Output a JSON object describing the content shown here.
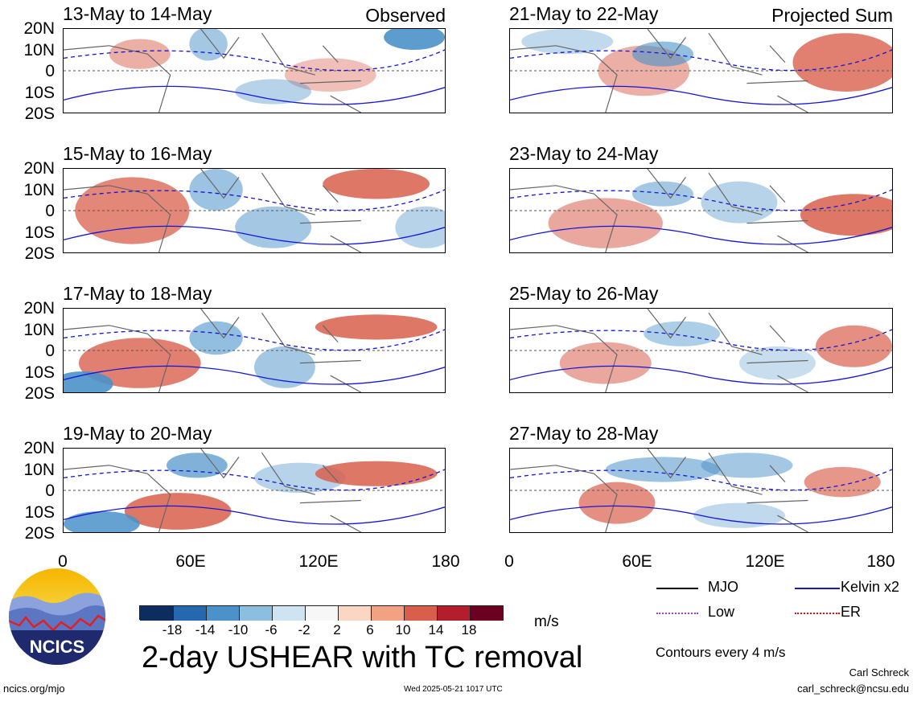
{
  "panels_left": [
    {
      "title": "13-May to 14-May",
      "corner": "Observed"
    },
    {
      "title": "15-May to 16-May",
      "corner": ""
    },
    {
      "title": "17-May to 18-May",
      "corner": ""
    },
    {
      "title": "19-May to 20-May",
      "corner": ""
    }
  ],
  "panels_right": [
    {
      "title": "21-May to 22-May",
      "corner": "Projected Sum"
    },
    {
      "title": "23-May to 24-May",
      "corner": ""
    },
    {
      "title": "25-May to 26-May",
      "corner": ""
    },
    {
      "title": "27-May to 28-May",
      "corner": ""
    }
  ],
  "lat_labels": [
    "20N",
    "10N",
    "0",
    "10S",
    "20S"
  ],
  "lon_labels": [
    "0",
    "60E",
    "120E",
    "180"
  ],
  "colorbar": {
    "colors": [
      "#0c2d5e",
      "#2468b0",
      "#4a92c9",
      "#8cbfdf",
      "#cfe4f1",
      "#f7f7f7",
      "#fbd6c2",
      "#f2a283",
      "#d95f4c",
      "#b41d2c",
      "#6c0020"
    ],
    "ticks": [
      "-18",
      "-14",
      "-10",
      "-6",
      "-2",
      "2",
      "6",
      "10",
      "14",
      "18"
    ],
    "units": "m/s"
  },
  "legend": {
    "items": [
      {
        "label": "MJO",
        "color": "#000000"
      },
      {
        "label": "Kelvin x2",
        "color": "#1515d8"
      },
      {
        "label": "Low",
        "color": "#a040e0"
      },
      {
        "label": "ER",
        "color": "#e01010"
      }
    ],
    "contour_note": "Contours every 4 m/s"
  },
  "main_title": "2-day USHEAR with TC removal",
  "logo_text": "NCICS",
  "footer": {
    "left": "ncics.org/mjo",
    "center": "Wed 2025-05-21 1017 UTC",
    "author": "Carl Schreck",
    "email": "carl_schreck@ncsu.edu"
  },
  "colors": {
    "shading_positive": "#d95f4c",
    "shading_negative": "#4a92c9",
    "kelvin_contour": "#1515d8",
    "coast": "#666666"
  }
}
